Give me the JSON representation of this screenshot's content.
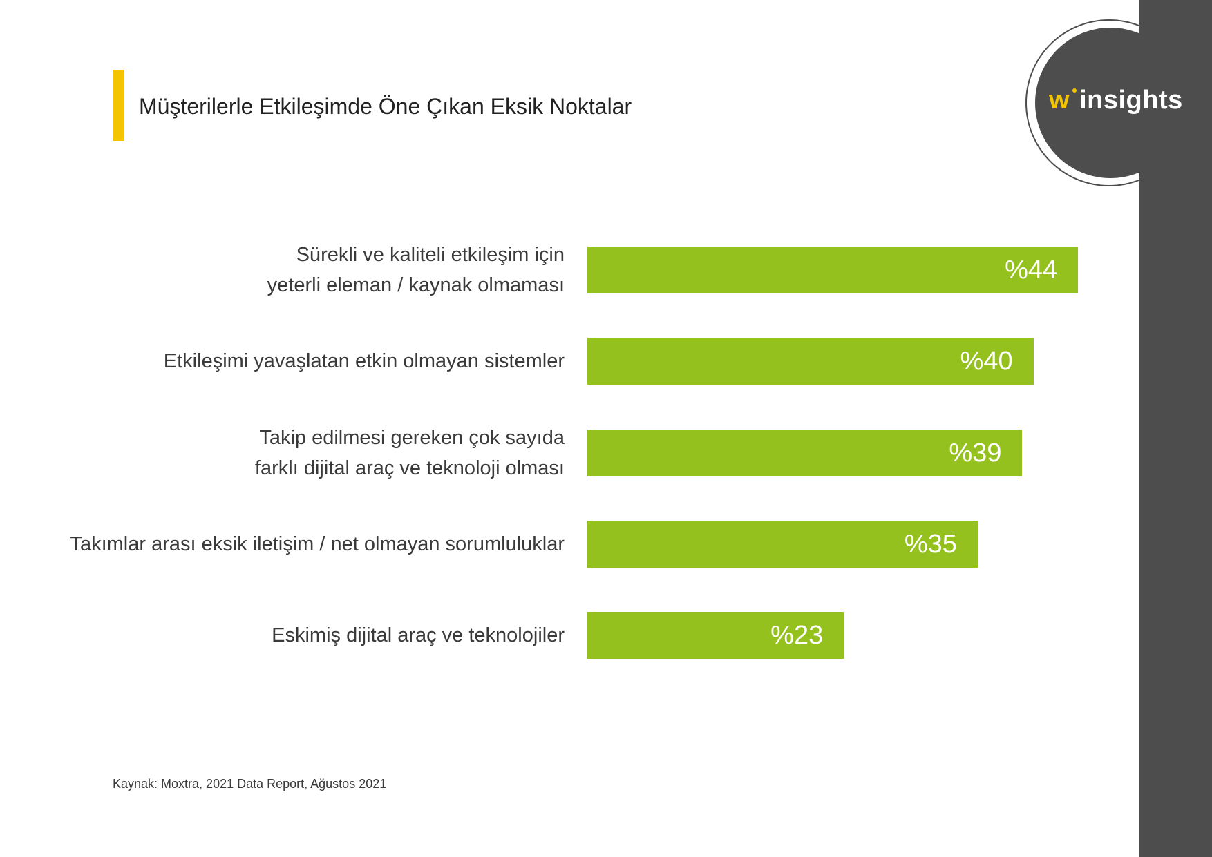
{
  "title": "Müşterilerle Etkileşimde Öne Çıkan Eksik Noktalar",
  "logo": {
    "brand_w": "w",
    "brand_text": "insights"
  },
  "source": "Kaynak: Moxtra, 2021 Data Report, Ağustos 2021",
  "colors": {
    "bar": "#95c11f",
    "accent": "#f5c400",
    "panel": "#4d4d4d"
  },
  "chart_data": {
    "type": "bar",
    "orientation": "horizontal",
    "title": "Müşterilerle Etkileşimde Öne Çıkan Eksik Noktalar",
    "categories": [
      [
        "Sürekli ve kaliteli etkileşim için",
        "yeterli eleman / kaynak olmaması"
      ],
      [
        "Etkileşimi yavaşlatan etkin olmayan sistemler"
      ],
      [
        "Takip edilmesi gereken çok sayıda",
        "farklı dijital araç ve teknoloji olması"
      ],
      [
        "Takımlar arası eksik iletişim / net olmayan sorumluluklar"
      ],
      [
        "Eskimiş dijital araç ve teknolojiler"
      ]
    ],
    "values": [
      44,
      40,
      39,
      35,
      23
    ],
    "value_labels": [
      "%44",
      "%40",
      "%39",
      "%35",
      "%23"
    ],
    "xlabel": "",
    "ylabel": "",
    "grid": false
  }
}
